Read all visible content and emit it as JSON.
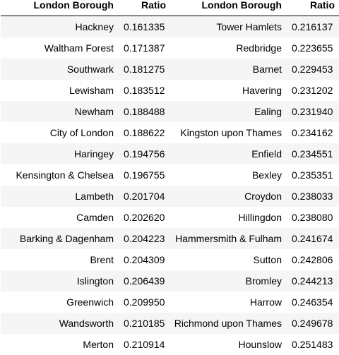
{
  "headers": {
    "borough": "London Borough",
    "ratio": "Ratio"
  },
  "left_rows": [
    {
      "borough": "Hackney",
      "ratio": "0.161335"
    },
    {
      "borough": "Waltham Forest",
      "ratio": "0.171387"
    },
    {
      "borough": "Southwark",
      "ratio": "0.181275"
    },
    {
      "borough": "Lewisham",
      "ratio": "0.183512"
    },
    {
      "borough": "Newham",
      "ratio": "0.188488"
    },
    {
      "borough": "City of London",
      "ratio": "0.188622"
    },
    {
      "borough": "Haringey",
      "ratio": "0.194756"
    },
    {
      "borough": "Kensington & Chelsea",
      "ratio": "0.196755"
    },
    {
      "borough": "Lambeth",
      "ratio": "0.201704"
    },
    {
      "borough": "Camden",
      "ratio": "0.202620"
    },
    {
      "borough": "Barking & Dagenham",
      "ratio": "0.204223"
    },
    {
      "borough": "Brent",
      "ratio": "0.204309"
    },
    {
      "borough": "Islington",
      "ratio": "0.206439"
    },
    {
      "borough": "Greenwich",
      "ratio": "0.209950"
    },
    {
      "borough": "Wandsworth",
      "ratio": "0.210185"
    },
    {
      "borough": "Merton",
      "ratio": "0.210914"
    }
  ],
  "right_rows": [
    {
      "borough": "Tower Hamlets",
      "ratio": "0.216137"
    },
    {
      "borough": "Redbridge",
      "ratio": "0.223655"
    },
    {
      "borough": "Barnet",
      "ratio": "0.229453"
    },
    {
      "borough": "Havering",
      "ratio": "0.231202"
    },
    {
      "borough": "Ealing",
      "ratio": "0.231940"
    },
    {
      "borough": "Kingston upon Thames",
      "ratio": "0.234162"
    },
    {
      "borough": "Enfield",
      "ratio": "0.234551"
    },
    {
      "borough": "Bexley",
      "ratio": "0.235351"
    },
    {
      "borough": "Croydon",
      "ratio": "0.238033"
    },
    {
      "borough": "Hillingdon",
      "ratio": "0.238080"
    },
    {
      "borough": "Hammersmith & Fulham",
      "ratio": "0.241674"
    },
    {
      "borough": "Sutton",
      "ratio": "0.242806"
    },
    {
      "borough": "Bromley",
      "ratio": "0.244213"
    },
    {
      "borough": "Harrow",
      "ratio": "0.246354"
    },
    {
      "borough": "Richmond upon Thames",
      "ratio": "0.249678"
    },
    {
      "borough": "Hounslow",
      "ratio": "0.251483"
    }
  ]
}
